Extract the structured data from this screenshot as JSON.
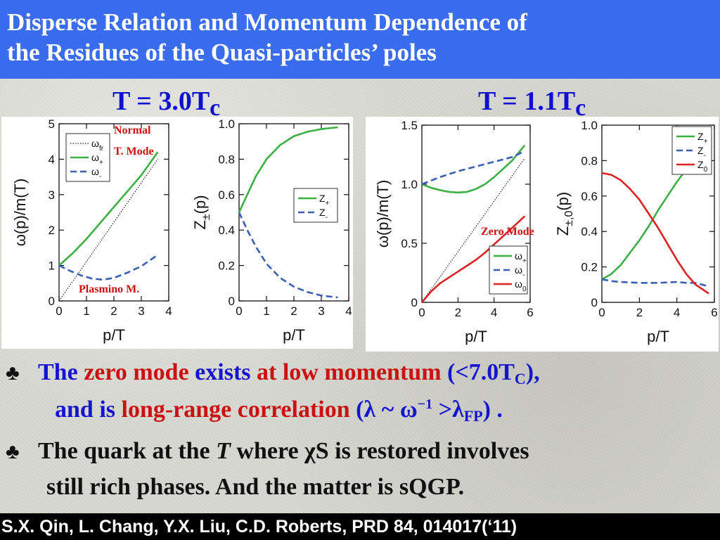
{
  "slide": {
    "title_line1": "Disperse Relation and Momentum Dependence of",
    "title_line2": "the Residues of the Quasi-particles’ poles",
    "temp_left_main": "T = 3.0T",
    "temp_left_sub": "c",
    "temp_right_main": "T = 1.1T",
    "temp_right_sub": "c",
    "bullet_symbol": "♣",
    "bullet1": {
      "p1": "The",
      "p2": "zero mode",
      "p3": "exists",
      "p4": "at low momentum",
      "p5": "(<7.0T",
      "p5_sub": "C",
      "p6": "),",
      "line2_p1": "and is",
      "line2_p2": "long-range correlation",
      "line2_p3": "(λ ~ ω",
      "line2_sup": "−1",
      "line2_p4": " >λ",
      "line2_sub": "FP",
      "line2_p5": ") ."
    },
    "bullet2": {
      "line1_a": "The quark at the ",
      "line1_T": "T",
      "line1_b": " where χS is restored involves",
      "line2": "still rich phases. And the matter is sQGP."
    },
    "footer": "S.X. Qin, L. Chang, Y.X. Liu, C.D. Roberts, PRD 84, 014017(‘11)"
  },
  "colors": {
    "green": "#3cb043",
    "blue_dash": "#3a5fb5",
    "red": "#dd2222",
    "annotation_red": "#d01010",
    "title_blue": "#3a6cf0"
  },
  "chart_data": [
    {
      "id": "a",
      "type": "line",
      "xlabel": "p/T",
      "ylabel": "ω(p)/m(T)",
      "xlim": [
        0,
        4
      ],
      "ylim": [
        0,
        5
      ],
      "xticks": [
        "0",
        "1",
        "2",
        "3",
        "4"
      ],
      "yticks": [
        "0",
        "1",
        "2",
        "3",
        "4",
        "5"
      ],
      "legend": {
        "placement": "top-left",
        "entries": [
          "ω_fr",
          "ω_+",
          "ω_-"
        ]
      },
      "annotations": [
        "Normal",
        "T. Mode",
        "Plasmino M."
      ],
      "series": [
        {
          "name": "ω_fr",
          "style": "dotted",
          "x": [
            0,
            3.6
          ],
          "y": [
            0,
            4.0
          ]
        },
        {
          "name": "ω_+",
          "style": "solid-green",
          "x": [
            0,
            0.5,
            1.0,
            1.5,
            2.0,
            2.5,
            3.0,
            3.6
          ],
          "y": [
            1.0,
            1.35,
            1.75,
            2.2,
            2.65,
            3.1,
            3.55,
            4.2
          ]
        },
        {
          "name": "ω_-",
          "style": "dashed-blue",
          "x": [
            0,
            0.4,
            0.8,
            1.2,
            1.6,
            2.0,
            2.5,
            3.0,
            3.6
          ],
          "y": [
            1.0,
            0.85,
            0.72,
            0.63,
            0.6,
            0.65,
            0.8,
            0.98,
            1.3
          ]
        }
      ]
    },
    {
      "id": "b",
      "type": "line",
      "xlabel": "p/T",
      "ylabel": "Z_±(p)",
      "xlim": [
        0,
        4
      ],
      "ylim": [
        0,
        1.0
      ],
      "xticks": [
        "0",
        "1",
        "2",
        "3",
        "4"
      ],
      "yticks": [
        "0",
        "0.2",
        "0.4",
        "0.6",
        "0.8",
        "1.0"
      ],
      "legend": {
        "placement": "center-right",
        "entries": [
          "Z_+",
          "Z_-"
        ]
      },
      "series": [
        {
          "name": "Z_+",
          "style": "solid-green",
          "x": [
            0,
            0.3,
            0.6,
            1.0,
            1.5,
            2.0,
            2.5,
            3.0,
            3.6
          ],
          "y": [
            0.5,
            0.6,
            0.7,
            0.8,
            0.88,
            0.93,
            0.955,
            0.97,
            0.98
          ]
        },
        {
          "name": "Z_-",
          "style": "dashed-blue",
          "x": [
            0,
            0.3,
            0.6,
            1.0,
            1.5,
            2.0,
            2.5,
            3.0,
            3.6
          ],
          "y": [
            0.5,
            0.4,
            0.31,
            0.21,
            0.13,
            0.08,
            0.05,
            0.03,
            0.02
          ]
        }
      ]
    },
    {
      "id": "c",
      "type": "line",
      "xlabel": "p/T",
      "ylabel": "ω(p)/m(T)",
      "xlim": [
        0,
        6
      ],
      "ylim": [
        0,
        1.5
      ],
      "xticks": [
        "0",
        "2",
        "4",
        "6"
      ],
      "yticks": [
        "0",
        "0.5",
        "1.0",
        "1.5"
      ],
      "legend": {
        "placement": "bottom-right",
        "entries": [
          "ω_+",
          "ω_-",
          "ω_0"
        ]
      },
      "annotations": [
        "Zero Mode"
      ],
      "series": [
        {
          "name": "ω_fr",
          "style": "dotted",
          "x": [
            0,
            5.7
          ],
          "y": [
            0,
            1.22
          ]
        },
        {
          "name": "ω_+",
          "style": "solid-green",
          "x": [
            0,
            0.5,
            1.0,
            1.5,
            2.0,
            2.5,
            3.0,
            3.5,
            4.0,
            4.5,
            5.0,
            5.7
          ],
          "y": [
            1.0,
            0.97,
            0.95,
            0.935,
            0.93,
            0.935,
            0.96,
            1.0,
            1.06,
            1.13,
            1.2,
            1.33
          ]
        },
        {
          "name": "ω_-",
          "style": "dashed-blue",
          "x": [
            0,
            1.0,
            2.0,
            3.0,
            4.0,
            5.0,
            5.7
          ],
          "y": [
            1.0,
            1.06,
            1.11,
            1.15,
            1.19,
            1.23,
            1.28
          ]
        },
        {
          "name": "ω_0",
          "style": "solid-red",
          "x": [
            0,
            0.5,
            1.0,
            1.5,
            2.0,
            2.5,
            3.0,
            3.5,
            4.0,
            4.5,
            5.0,
            5.7
          ],
          "y": [
            0,
            0.09,
            0.16,
            0.21,
            0.26,
            0.31,
            0.36,
            0.42,
            0.49,
            0.56,
            0.63,
            0.73
          ]
        }
      ]
    },
    {
      "id": "d",
      "type": "line",
      "xlabel": "p/T",
      "ylabel": "Z_±,0(p)",
      "xlim": [
        0,
        6
      ],
      "ylim": [
        0,
        1.0
      ],
      "xticks": [
        "0",
        "2",
        "4",
        "6"
      ],
      "yticks": [
        "0",
        "0.2",
        "0.4",
        "0.6",
        "0.8",
        "1.0"
      ],
      "legend": {
        "placement": "top-right",
        "entries": [
          "Z_+",
          "Z_-",
          "Z_0"
        ]
      },
      "series": [
        {
          "name": "Z_+",
          "style": "solid-green",
          "x": [
            0,
            0.5,
            1.0,
            1.5,
            2.0,
            2.5,
            3.0,
            3.5,
            4.0,
            4.5,
            5.0,
            5.7
          ],
          "y": [
            0.13,
            0.16,
            0.21,
            0.28,
            0.35,
            0.43,
            0.52,
            0.6,
            0.68,
            0.75,
            0.8,
            0.85
          ]
        },
        {
          "name": "Z_-",
          "style": "dashed-blue",
          "x": [
            0,
            0.5,
            1.0,
            2.0,
            3.0,
            4.0,
            4.5,
            5.0,
            5.7
          ],
          "y": [
            0.13,
            0.12,
            0.115,
            0.11,
            0.11,
            0.115,
            0.11,
            0.11,
            0.09
          ]
        },
        {
          "name": "Z_0",
          "style": "solid-red",
          "x": [
            0,
            0.5,
            1.0,
            1.5,
            2.0,
            2.5,
            3.0,
            3.5,
            4.0,
            4.5,
            5.0,
            5.7
          ],
          "y": [
            0.73,
            0.72,
            0.69,
            0.64,
            0.58,
            0.5,
            0.42,
            0.33,
            0.24,
            0.16,
            0.1,
            0.05
          ]
        }
      ]
    }
  ]
}
